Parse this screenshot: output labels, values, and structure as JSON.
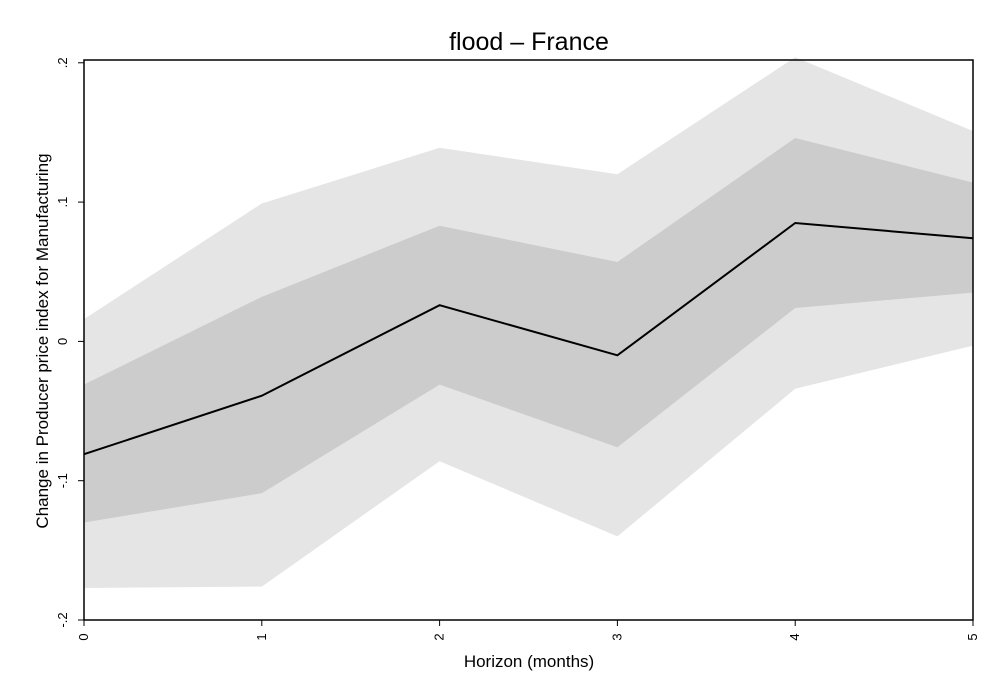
{
  "chart_data": {
    "type": "area",
    "title": "flood – France",
    "xlabel": "Horizon (months)",
    "ylabel": "Change in Producer price index for Manufacturing",
    "x": [
      0,
      1,
      2,
      3,
      4,
      5
    ],
    "x_tick_labels": [
      "0",
      "1",
      "2",
      "3",
      "4",
      "5"
    ],
    "y_ticks": [
      -0.2,
      -0.1,
      0,
      0.1,
      0.2
    ],
    "y_tick_labels": [
      "-.2",
      "-.1",
      "0",
      ".1",
      ".2"
    ],
    "xlim": [
      0,
      5
    ],
    "ylim": [
      -0.2,
      0.202
    ],
    "grid": false,
    "series": [
      {
        "role": "outer-band",
        "color": "#e5e5e5",
        "upper": [
          0.016,
          0.099,
          0.139,
          0.12,
          0.204,
          0.151
        ],
        "lower": [
          -0.177,
          -0.176,
          -0.086,
          -0.14,
          -0.034,
          -0.003
        ]
      },
      {
        "role": "inner-band",
        "color": "#cccccc",
        "upper": [
          -0.031,
          0.032,
          0.083,
          0.057,
          0.146,
          0.114
        ],
        "lower": [
          -0.13,
          -0.109,
          -0.031,
          -0.076,
          0.024,
          0.035
        ]
      },
      {
        "role": "estimate",
        "color": "#000000",
        "values": [
          -0.081,
          -0.039,
          0.026,
          -0.01,
          0.085,
          0.074
        ]
      }
    ]
  }
}
